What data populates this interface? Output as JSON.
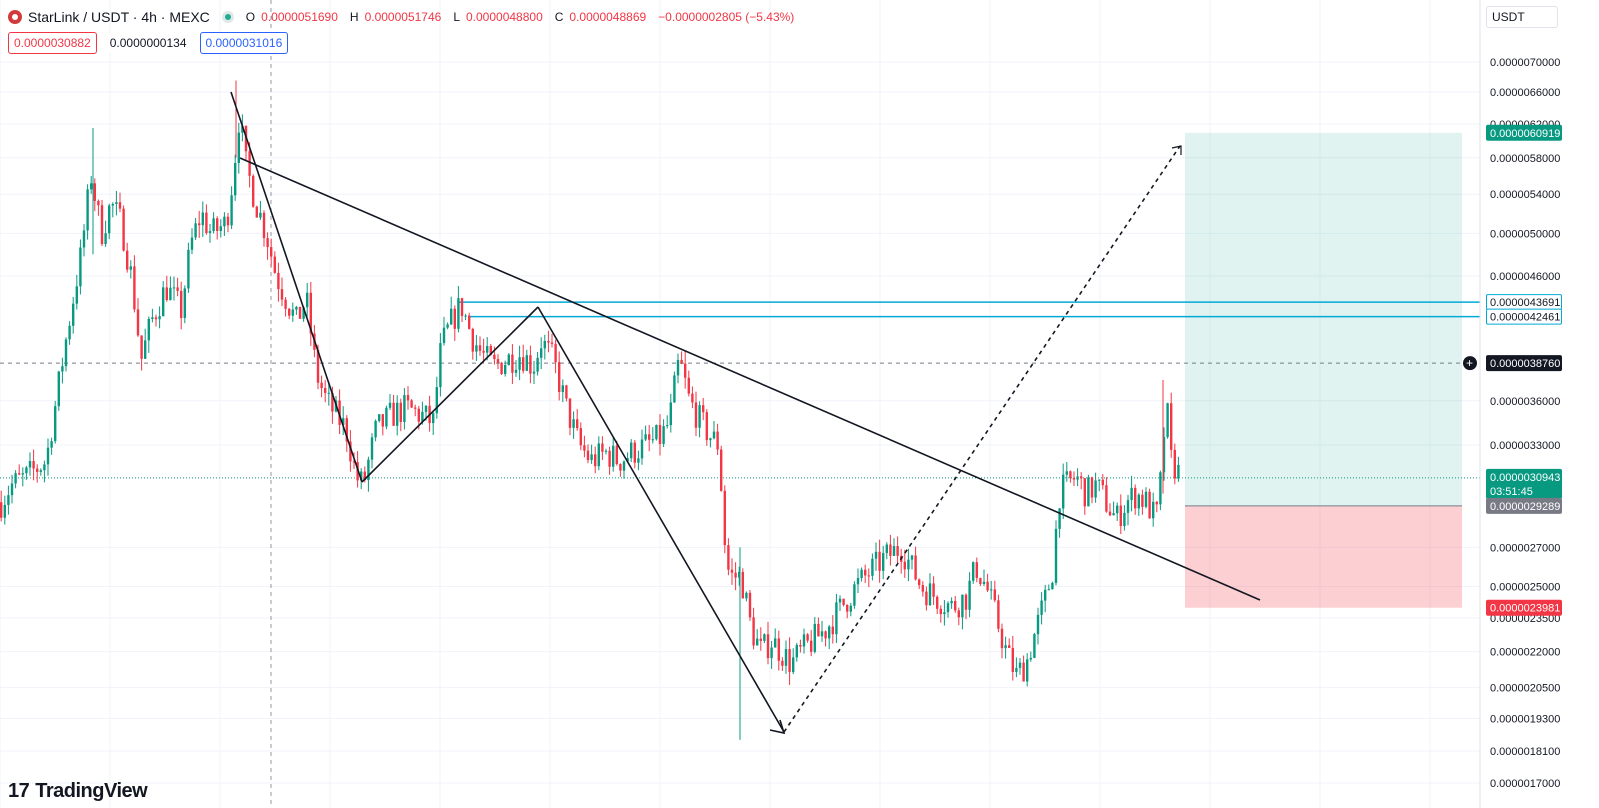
{
  "header": {
    "symbol": "StarLink / USDT · 4h · MEXC",
    "open_label": "O",
    "open": "0.0000051690",
    "high_label": "H",
    "high": "0.0000051746",
    "low_label": "L",
    "low": "0.0000048800",
    "close_label": "C",
    "close": "0.0000048869",
    "change": "−0.0000002805 (−5.43%)"
  },
  "order_boxes": {
    "sell": "0.0000030882",
    "spread": "0.0000000134",
    "buy": "0.0000031016"
  },
  "currency": "USDT",
  "brand": "TradingView",
  "colors": {
    "up": "#089981",
    "down": "#f23645",
    "profit_zone": "#22ab94",
    "loss_zone": "#f23645",
    "line": "#131722",
    "hline": "#00a9d6"
  },
  "chart_data": {
    "type": "candlestick",
    "y_axis_ticks": [
      "0.0000070000",
      "0.0000066000",
      "0.0000062000",
      "0.0000058000",
      "0.0000054000",
      "0.0000050000",
      "0.0000046000",
      "0.0000036000",
      "0.0000033000",
      "0.0000027000",
      "0.0000025000",
      "0.0000023500",
      "0.0000022000",
      "0.0000020500",
      "0.0000019300",
      "0.0000018100",
      "0.0000017000"
    ],
    "y_scale": "log",
    "price_labels": [
      {
        "value": "0.0000060919",
        "kind": "target"
      },
      {
        "value": "0.0000043691",
        "kind": "hline"
      },
      {
        "value": "0.0000042461",
        "kind": "hline"
      },
      {
        "value": "0.0000038760",
        "kind": "crosshair"
      },
      {
        "value": "0.0000030943",
        "kind": "last"
      },
      {
        "value": "0.0000029289",
        "kind": "entry"
      },
      {
        "value": "0.0000023981",
        "kind": "stop"
      }
    ],
    "countdown": "03:51:45",
    "waypoints": [
      [
        0,
        2.95
      ],
      [
        10,
        3.05
      ],
      [
        25,
        3.1
      ],
      [
        45,
        3.2
      ],
      [
        55,
        3.6
      ],
      [
        70,
        4.3
      ],
      [
        80,
        4.8
      ],
      [
        90,
        5.6
      ],
      [
        100,
        5.0
      ],
      [
        110,
        5.3
      ],
      [
        120,
        5.1
      ],
      [
        130,
        4.6
      ],
      [
        140,
        3.9
      ],
      [
        150,
        4.2
      ],
      [
        165,
        4.5
      ],
      [
        180,
        4.3
      ],
      [
        190,
        4.9
      ],
      [
        200,
        5.2
      ],
      [
        210,
        5.0
      ],
      [
        225,
        5.1
      ],
      [
        232,
        5.6
      ],
      [
        238,
        6.3
      ],
      [
        245,
        5.7
      ],
      [
        255,
        5.3
      ],
      [
        265,
        5.0
      ],
      [
        275,
        4.6
      ],
      [
        285,
        4.4
      ],
      [
        295,
        4.2
      ],
      [
        305,
        4.4
      ],
      [
        315,
        3.8
      ],
      [
        325,
        3.6
      ],
      [
        335,
        3.5
      ],
      [
        345,
        3.4
      ],
      [
        355,
        3.1
      ],
      [
        362,
        3.05
      ],
      [
        375,
        3.4
      ],
      [
        390,
        3.5
      ],
      [
        405,
        3.55
      ],
      [
        420,
        3.5
      ],
      [
        432,
        3.45
      ],
      [
        440,
        4.0
      ],
      [
        450,
        4.2
      ],
      [
        460,
        4.35
      ],
      [
        470,
        4.1
      ],
      [
        480,
        3.95
      ],
      [
        492,
        3.85
      ],
      [
        505,
        3.9
      ],
      [
        520,
        3.95
      ],
      [
        532,
        3.85
      ],
      [
        540,
        4.05
      ],
      [
        552,
        3.9
      ],
      [
        565,
        3.55
      ],
      [
        578,
        3.3
      ],
      [
        590,
        3.2
      ],
      [
        605,
        3.25
      ],
      [
        618,
        3.2
      ],
      [
        630,
        3.25
      ],
      [
        645,
        3.3
      ],
      [
        660,
        3.35
      ],
      [
        668,
        3.45
      ],
      [
        678,
        3.9
      ],
      [
        688,
        3.6
      ],
      [
        700,
        3.45
      ],
      [
        710,
        3.35
      ],
      [
        718,
        3.3
      ],
      [
        722,
        2.8
      ],
      [
        728,
        2.55
      ],
      [
        740,
        2.55
      ],
      [
        750,
        2.3
      ],
      [
        760,
        2.2
      ],
      [
        770,
        2.25
      ],
      [
        780,
        2.2
      ],
      [
        790,
        2.15
      ],
      [
        800,
        2.2
      ],
      [
        812,
        2.25
      ],
      [
        825,
        2.3
      ],
      [
        840,
        2.4
      ],
      [
        855,
        2.5
      ],
      [
        870,
        2.58
      ],
      [
        885,
        2.65
      ],
      [
        900,
        2.7
      ],
      [
        910,
        2.6
      ],
      [
        920,
        2.5
      ],
      [
        935,
        2.45
      ],
      [
        950,
        2.4
      ],
      [
        965,
        2.45
      ],
      [
        975,
        2.6
      ],
      [
        985,
        2.5
      ],
      [
        995,
        2.35
      ],
      [
        1005,
        2.2
      ],
      [
        1015,
        2.1
      ],
      [
        1025,
        2.15
      ],
      [
        1035,
        2.3
      ],
      [
        1045,
        2.45
      ],
      [
        1052,
        2.6
      ],
      [
        1058,
        3.0
      ],
      [
        1065,
        3.05
      ],
      [
        1075,
        3.1
      ],
      [
        1085,
        3.0
      ],
      [
        1095,
        3.05
      ],
      [
        1105,
        2.95
      ],
      [
        1115,
        2.85
      ],
      [
        1125,
        2.95
      ],
      [
        1135,
        3.0
      ],
      [
        1145,
        2.95
      ],
      [
        1155,
        2.85
      ],
      [
        1160,
        3.1
      ],
      [
        1165,
        3.6
      ],
      [
        1170,
        3.2
      ],
      [
        1180,
        3.1
      ]
    ]
  }
}
